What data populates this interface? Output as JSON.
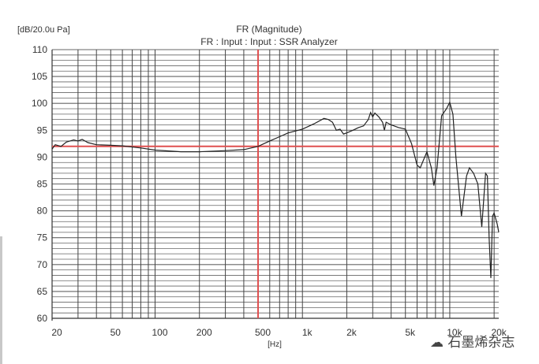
{
  "chart_data": {
    "type": "line",
    "title": "FR (Magnitude)",
    "subtitle": "FR : Input : Input : SSR Analyzer",
    "ylabel": "[dB/20.0u Pa]",
    "xlabel": "[Hz]",
    "xscale": "log",
    "xlim": [
      20,
      21500
    ],
    "ylim": [
      60,
      110
    ],
    "grid": true,
    "yticks": [
      110,
      105,
      100,
      95,
      90,
      85,
      80,
      75,
      70,
      65,
      60
    ],
    "xticks": [
      {
        "value": 20,
        "label": "20"
      },
      {
        "value": 50,
        "label": "50"
      },
      {
        "value": 100,
        "label": "100"
      },
      {
        "value": 200,
        "label": "200"
      },
      {
        "value": 500,
        "label": "500"
      },
      {
        "value": 1000,
        "label": "1k"
      },
      {
        "value": 2000,
        "label": "2k"
      },
      {
        "value": 5000,
        "label": "5k"
      },
      {
        "value": 10000,
        "label": "10k"
      },
      {
        "value": 20000,
        "label": "20k"
      }
    ],
    "reference_lines": {
      "horizontal_db": 92,
      "vertical_hz": 500,
      "color": "#e05050"
    },
    "series": [
      {
        "name": "FR",
        "color": "#222222",
        "x": [
          20,
          21,
          23,
          25,
          28,
          30,
          32,
          35,
          40,
          50,
          60,
          80,
          100,
          150,
          200,
          300,
          400,
          500,
          600,
          700,
          800,
          1000,
          1200,
          1400,
          1500,
          1600,
          1700,
          1800,
          1900,
          2000,
          2200,
          2400,
          2600,
          2800,
          2900,
          3000,
          3100,
          3300,
          3500,
          3600,
          3700,
          4000,
          4500,
          5000,
          5500,
          6000,
          6300,
          7000,
          7500,
          7800,
          8200,
          8800,
          9500,
          10000,
          10500,
          11000,
          12000,
          13000,
          13600,
          14500,
          15500,
          16500,
          17500,
          18000,
          18500,
          19000,
          19500,
          20000,
          21000,
          21500
        ],
        "y": [
          91.5,
          92.3,
          92,
          92.8,
          93.2,
          93,
          93.3,
          92.7,
          92.3,
          92.2,
          92.1,
          91.7,
          91.3,
          91.0,
          91.0,
          91.2,
          91.4,
          92,
          93,
          93.8,
          94.5,
          95.2,
          96.2,
          97.2,
          97.0,
          96.5,
          95,
          95.2,
          94.3,
          94.5,
          95,
          95.5,
          95.8,
          97,
          98.3,
          97.5,
          98.2,
          97.5,
          96.5,
          95,
          96.5,
          96,
          95.5,
          95.2,
          92.5,
          88.5,
          88,
          91,
          88,
          84.7,
          88,
          97.7,
          99,
          100.2,
          98,
          90,
          79,
          86.5,
          88,
          87,
          85,
          77,
          87,
          86.5,
          75,
          67.5,
          79,
          79.6,
          77.5,
          76
        ]
      }
    ]
  },
  "watermark": "石墨烯杂志"
}
